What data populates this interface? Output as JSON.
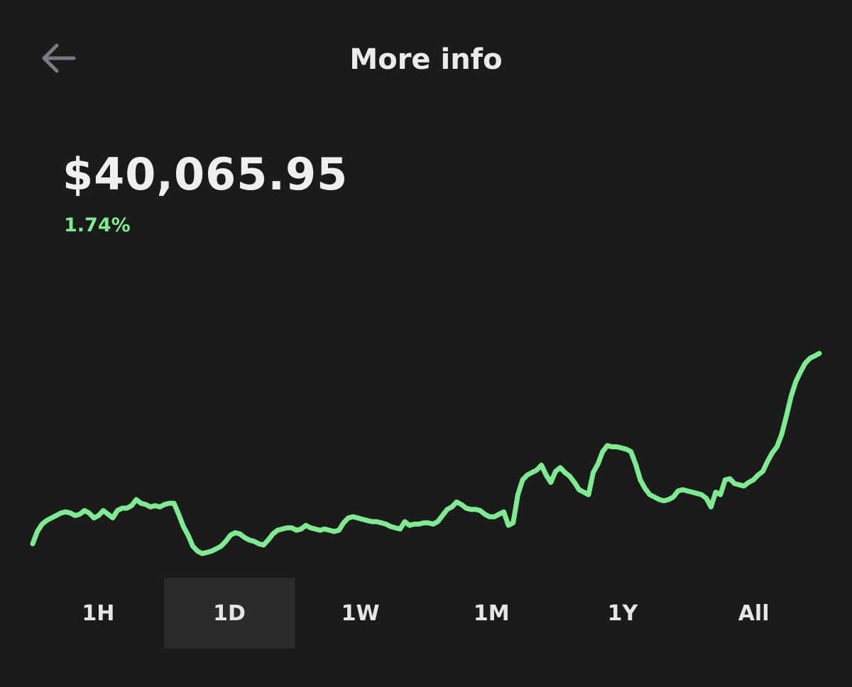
{
  "header": {
    "title": "More info",
    "back_icon": "arrow-left-icon"
  },
  "quote": {
    "price": "$40,065.95",
    "change": "1.74%"
  },
  "colors": {
    "background": "#1b1b1c",
    "line": "#80ea92",
    "change_text": "#80ea92",
    "selected_tab": "#2b2b2d",
    "back_icon": "#7a7a86"
  },
  "range_tabs": [
    {
      "label": "1H",
      "selected": false
    },
    {
      "label": "1D",
      "selected": true
    },
    {
      "label": "1W",
      "selected": false
    },
    {
      "label": "1M",
      "selected": false
    },
    {
      "label": "1Y",
      "selected": false
    },
    {
      "label": "All",
      "selected": false
    }
  ],
  "chart_data": {
    "type": "line",
    "title": "",
    "xlabel": "",
    "ylabel": "",
    "grid": false,
    "series": [
      {
        "values": [
          0.08,
          0.18,
          0.24,
          0.27,
          0.29,
          0.31,
          0.33,
          0.34,
          0.33,
          0.31,
          0.32,
          0.35,
          0.33,
          0.29,
          0.31,
          0.35,
          0.32,
          0.29,
          0.35,
          0.37,
          0.37,
          0.39,
          0.44,
          0.41,
          0.4,
          0.38,
          0.39,
          0.38,
          0.4,
          0.41,
          0.41,
          0.32,
          0.22,
          0.15,
          0.06,
          0.02,
          0.0,
          0.01,
          0.02,
          0.04,
          0.06,
          0.1,
          0.15,
          0.17,
          0.16,
          0.13,
          0.11,
          0.1,
          0.08,
          0.07,
          0.11,
          0.16,
          0.19,
          0.2,
          0.21,
          0.21,
          0.19,
          0.2,
          0.23,
          0.21,
          0.2,
          0.19,
          0.2,
          0.19,
          0.18,
          0.19,
          0.25,
          0.29,
          0.3,
          0.29,
          0.28,
          0.27,
          0.26,
          0.26,
          0.25,
          0.24,
          0.22,
          0.21,
          0.2,
          0.26,
          0.23,
          0.24,
          0.24,
          0.25,
          0.25,
          0.24,
          0.26,
          0.31,
          0.36,
          0.38,
          0.42,
          0.4,
          0.37,
          0.36,
          0.36,
          0.35,
          0.32,
          0.3,
          0.3,
          0.32,
          0.34,
          0.23,
          0.25,
          0.48,
          0.6,
          0.64,
          0.66,
          0.68,
          0.72,
          0.64,
          0.58,
          0.67,
          0.7,
          0.66,
          0.63,
          0.58,
          0.52,
          0.5,
          0.48,
          0.66,
          0.73,
          0.83,
          0.88,
          0.87,
          0.87,
          0.86,
          0.85,
          0.83,
          0.73,
          0.6,
          0.53,
          0.48,
          0.46,
          0.44,
          0.43,
          0.44,
          0.46,
          0.51,
          0.52,
          0.51,
          0.5,
          0.49,
          0.48,
          0.45,
          0.38,
          0.5,
          0.48,
          0.6,
          0.61,
          0.57,
          0.56,
          0.55,
          0.58,
          0.6,
          0.64,
          0.67,
          0.75,
          0.82,
          0.87,
          0.97,
          1.12,
          1.28,
          1.4,
          1.48,
          1.55,
          1.59,
          1.61,
          1.63
        ]
      }
    ]
  }
}
